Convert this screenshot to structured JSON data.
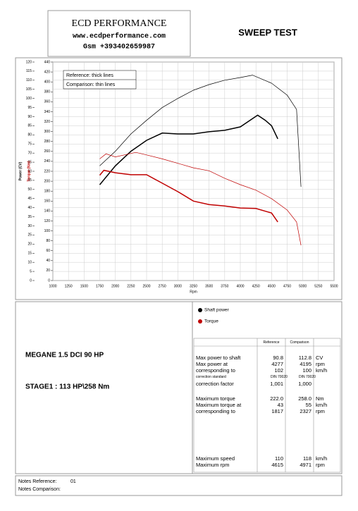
{
  "header": {
    "company": "ECD PERFORMANCE",
    "website": "www.ecdperformance.com",
    "phone": "Gsm +393402659987",
    "title": "SWEEP TEST"
  },
  "chart_data": {
    "type": "line",
    "xlabel": "Rpm",
    "ylabel": "Power (CV)",
    "y2label": "Torque (Nm)",
    "xlim": [
      1000,
      5500
    ],
    "xticks": [
      1000,
      1250,
      1500,
      1750,
      2000,
      2250,
      2500,
      2750,
      3000,
      3250,
      3500,
      3750,
      4000,
      4250,
      4500,
      4750,
      5000,
      5250,
      5500
    ],
    "ylim": [
      0,
      120
    ],
    "yticks": [
      0,
      5,
      10,
      15,
      20,
      25,
      30,
      35,
      40,
      45,
      50,
      55,
      60,
      65,
      70,
      75,
      80,
      85,
      90,
      95,
      100,
      105,
      110,
      115,
      120
    ],
    "y2lim": [
      0,
      440
    ],
    "y2ticks": [
      0,
      20,
      40,
      60,
      80,
      100,
      120,
      140,
      160,
      180,
      200,
      220,
      240,
      260,
      280,
      300,
      320,
      340,
      360,
      380,
      400,
      420,
      440
    ],
    "grid": true,
    "line_key": [
      "Reference: thick lines",
      "Comparison: thin lines"
    ],
    "series": [
      {
        "name": "Shaft power",
        "color": "#000000",
        "line": "thick",
        "axis": "y",
        "x": [
          1750,
          2000,
          2250,
          2500,
          2750,
          3000,
          3250,
          3500,
          3750,
          4000,
          4277,
          4400,
          4500,
          4600
        ],
        "values": [
          52.6,
          63,
          71,
          77,
          81,
          80.5,
          80.5,
          81.7,
          82.5,
          84.4,
          90.8,
          88,
          85,
          77.8
        ]
      },
      {
        "name": "Shaft power",
        "color": "#000000",
        "line": "thin",
        "axis": "y",
        "x": [
          1750,
          2000,
          2250,
          2500,
          2750,
          3000,
          3250,
          3500,
          3750,
          4000,
          4195,
          4500,
          4750,
          4900,
          4971
        ],
        "values": [
          63,
          71,
          80.5,
          88,
          95,
          100,
          104.5,
          107.6,
          110,
          111.5,
          112.8,
          108.4,
          101.8,
          94,
          51.5
        ]
      },
      {
        "name": "Torque",
        "color": "#c00000",
        "line": "thick",
        "axis": "y2",
        "x": [
          1750,
          1817,
          2000,
          2250,
          2500,
          2750,
          3000,
          3250,
          3500,
          3750,
          4000,
          4250,
          4500,
          4600
        ],
        "values": [
          212,
          222,
          217,
          213,
          213,
          196,
          179,
          160,
          153,
          150,
          146,
          145,
          136,
          118
        ]
      },
      {
        "name": "Torque",
        "color": "#c00000",
        "line": "thin",
        "axis": "y2",
        "x": [
          1750,
          1850,
          2000,
          2327,
          2500,
          2750,
          3000,
          3250,
          3500,
          3750,
          4000,
          4250,
          4500,
          4750,
          4900,
          4971
        ],
        "values": [
          245,
          255,
          249,
          258,
          253,
          245,
          236,
          227,
          221,
          206,
          193,
          182,
          165,
          142,
          118,
          71
        ]
      }
    ]
  },
  "vehicle": {
    "model": "MEGANE 1.5 DCI 90 HP",
    "stage": "STAGE1 : 113 HP\\258 Nm"
  },
  "table": {
    "header": [
      "Reference",
      "Comparison"
    ],
    "rows": [
      [
        "Max power to shaft",
        "90.8",
        "112.8",
        "CV"
      ],
      [
        "Max power at",
        "4277",
        "4195",
        "rpm"
      ],
      [
        "corresponding to",
        "102",
        "100",
        "km/h"
      ],
      [
        "correction standard",
        "DIN 70020",
        "DIN 70020"
      ],
      [
        "correction factor",
        "1,001",
        "1,000"
      ],
      [
        "Maximum torque",
        "222.0",
        "258.0",
        "Nm"
      ],
      [
        "Maximum torque at",
        "43",
        "55",
        "km/h"
      ],
      [
        "corresponding to",
        "1817",
        "2327",
        "rpm"
      ],
      [
        "Maximum speed",
        "110",
        "118",
        "km/h"
      ],
      [
        "Maximum rpm",
        "4615",
        "4971",
        "rpm"
      ]
    ]
  },
  "notes": {
    "reference_label": "Notes Reference:",
    "reference_value": "01",
    "comparison_label": "Notes Comparison:"
  }
}
